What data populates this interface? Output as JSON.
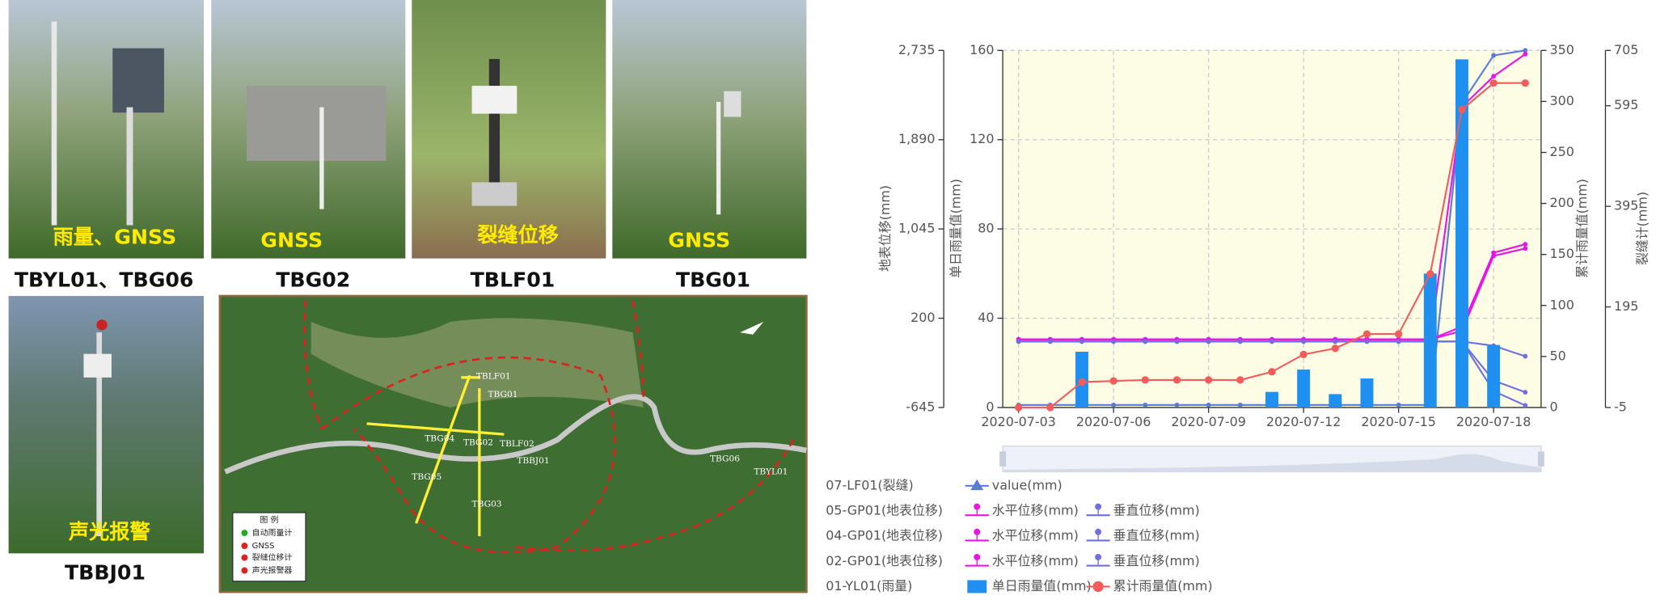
{
  "photos": [
    {
      "overlay": "雨量、GNSS",
      "caption": "TBYL01、TBG06"
    },
    {
      "overlay": "GNSS",
      "caption": "TBG02"
    },
    {
      "overlay": "裂缝位移",
      "caption": "TBLF01"
    },
    {
      "overlay": "GNSS",
      "caption": "TBG01"
    },
    {
      "overlay": "声光报警",
      "caption": "TBBJ01"
    }
  ],
  "map": {
    "legend_title": "图 例",
    "legend": [
      "自动雨量计",
      "GNSS",
      "裂缝位移计",
      "声光报警器"
    ],
    "labels": [
      "TBLF01",
      "TBG01",
      "TBG04",
      "TBG02",
      "TBLF02",
      "TBBJ01",
      "TBG05",
      "TBG03",
      "TBG06",
      "TBYL01"
    ]
  },
  "chart_data": {
    "type": "line",
    "x": [
      "2020-07-03",
      "2020-07-04",
      "2020-07-05",
      "2020-07-06",
      "2020-07-07",
      "2020-07-08",
      "2020-07-09",
      "2020-07-10",
      "2020-07-11",
      "2020-07-12",
      "2020-07-13",
      "2020-07-14",
      "2020-07-15",
      "2020-07-16",
      "2020-07-17",
      "2020-07-18",
      "2020-07-19"
    ],
    "xticks": [
      "2020-07-03",
      "2020-07-06",
      "2020-07-09",
      "2020-07-12",
      "2020-07-15",
      "2020-07-18"
    ],
    "ylabel": "地表位移(mm)",
    "ylim": [
      -645,
      2735
    ],
    "yticks": [
      -645,
      200,
      {
        "value": 1045,
        "label": "1,045"
      },
      {
        "value": 1890,
        "label": "1,890"
      },
      {
        "value": 2735,
        "label": "2,735"
      }
    ],
    "y2label": "单日雨量值(mm)",
    "y2lim": [
      0,
      160
    ],
    "y2ticks": [
      0,
      40,
      80,
      120,
      160
    ],
    "y3label": "累计雨量值(mm)",
    "y3lim": [
      0,
      350
    ],
    "y3ticks": [
      0,
      50,
      100,
      150,
      200,
      250,
      300,
      350
    ],
    "y4label": "裂缝计(mm)",
    "y4lim": [
      -5,
      705
    ],
    "y4ticks": [
      -5,
      195,
      395,
      595,
      705
    ],
    "grid": true,
    "series": [
      {
        "group": "07-LF01(裂缝)",
        "name": "value(mm)",
        "marker": "triangle",
        "color": "#5b7bd5",
        "axis": "y4",
        "values": [
          0,
          0,
          0,
          0,
          0,
          0,
          0,
          0,
          0,
          0,
          0,
          0,
          0,
          0,
          600,
          695,
          705
        ]
      },
      {
        "group": "05-GP01(地表位移)",
        "name": "水平位移(mm)",
        "marker": "pin",
        "color": "#e814e8",
        "axis": "y",
        "values": [
          0,
          0,
          0,
          0,
          0,
          0,
          0,
          0,
          0,
          0,
          0,
          0,
          0,
          0,
          120,
          820,
          900
        ]
      },
      {
        "group": "05-GP01(地表位移)",
        "name": "垂直位移(mm)",
        "marker": "pin",
        "color": "#6f6fe0",
        "axis": "y",
        "values": [
          -20,
          -20,
          -20,
          -20,
          -20,
          -20,
          -20,
          -20,
          -20,
          -20,
          -20,
          -20,
          -20,
          -20,
          -20,
          -60,
          -160
        ]
      },
      {
        "group": "04-GP01(地表位移)",
        "name": "水平位移(mm)",
        "marker": "pin",
        "color": "#e814e8",
        "axis": "y",
        "values": [
          0,
          0,
          0,
          0,
          0,
          0,
          0,
          0,
          0,
          0,
          0,
          0,
          0,
          0,
          80,
          790,
          860
        ]
      },
      {
        "group": "04-GP01(地表位移)",
        "name": "垂直位移(mm)",
        "marker": "pin",
        "color": "#6f6fe0",
        "axis": "y",
        "values": [
          -20,
          -20,
          -20,
          -20,
          -20,
          -20,
          -20,
          -20,
          -20,
          -20,
          -20,
          -20,
          -20,
          -20,
          -20,
          -390,
          -500
        ]
      },
      {
        "group": "02-GP01(地表位移)",
        "name": "水平位移(mm)",
        "marker": "pin",
        "color": "#e814e8",
        "axis": "y",
        "values": [
          0,
          0,
          0,
          0,
          0,
          0,
          0,
          0,
          0,
          0,
          0,
          0,
          0,
          0,
          2200,
          2490,
          2700
        ]
      },
      {
        "group": "02-GP01(地表位移)",
        "name": "垂直位移(mm)",
        "marker": "pin",
        "color": "#6f6fe0",
        "axis": "y",
        "values": [
          -20,
          -20,
          -20,
          -20,
          -20,
          -20,
          -20,
          -20,
          -20,
          -20,
          -20,
          -20,
          -20,
          -20,
          -20,
          -490,
          -625
        ]
      },
      {
        "group": "01-YL01(雨量)",
        "name": "单日雨量值(mm)",
        "type": "bar",
        "marker": "rect",
        "color": "#1f8ff0",
        "axis": "y2",
        "values": [
          0,
          0,
          25,
          0,
          0,
          0,
          0,
          0,
          7,
          17,
          6,
          13,
          0,
          60,
          156,
          28,
          0
        ]
      },
      {
        "group": "01-YL01(雨量)",
        "name": "累计雨量值(mm)",
        "marker": "circle",
        "color": "#f25c5c",
        "axis": "y3",
        "values": [
          0,
          0,
          25,
          26,
          27,
          27,
          27,
          27,
          35,
          52,
          58,
          72,
          72,
          131,
          292,
          318,
          318
        ]
      }
    ]
  }
}
